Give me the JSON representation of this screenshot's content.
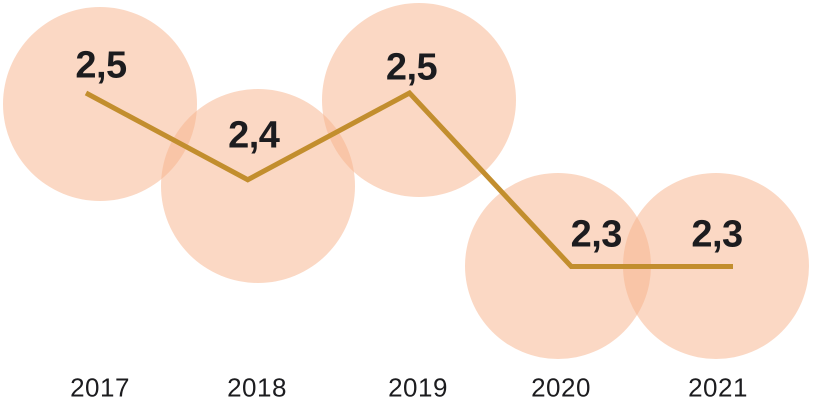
{
  "chart_data": {
    "type": "line",
    "categories": [
      "2017",
      "2018",
      "2019",
      "2020",
      "2021"
    ],
    "values": [
      2.5,
      2.4,
      2.5,
      2.3,
      2.3
    ],
    "value_labels": [
      "2,5",
      "2,4",
      "2,5",
      "2,3",
      "2,3"
    ],
    "title": "",
    "xlabel": "",
    "ylabel": "",
    "ylim": [
      2.2,
      2.6
    ],
    "grid": false,
    "legend": "none",
    "decimal_separator": ",",
    "style_notes": "large translucent peach bubbles behind each data point, ochre trend line, category year labels along bottom",
    "colors": {
      "bubble": "#F7B189",
      "bubble_opacity": "0.5",
      "line": "#C28E2E",
      "value_text": "#1C1C1F",
      "axis_text": "#1C1C1F",
      "background": "#FFFFFF"
    }
  }
}
